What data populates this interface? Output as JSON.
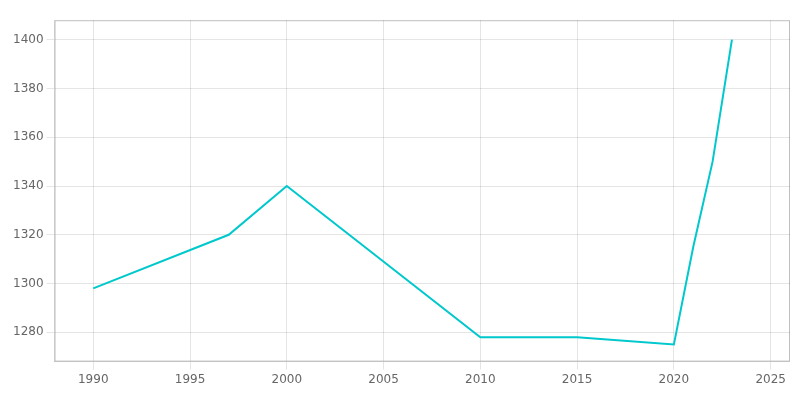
{
  "chart_data": {
    "type": "line",
    "x": [
      1990,
      1997,
      2000,
      2010,
      2015,
      2020,
      2021,
      2022,
      2023
    ],
    "values": [
      1298,
      1320,
      1340,
      1278,
      1278,
      1275,
      1315,
      1350,
      1400
    ],
    "color": "#00C8CC",
    "xlim": [
      1988,
      2026
    ],
    "ylim": [
      1268,
      1408
    ],
    "xticks": [
      1990,
      1995,
      2000,
      2005,
      2010,
      2015,
      2020,
      2025
    ],
    "yticks": [
      1280,
      1300,
      1320,
      1340,
      1360,
      1380,
      1400
    ],
    "grid": true
  }
}
